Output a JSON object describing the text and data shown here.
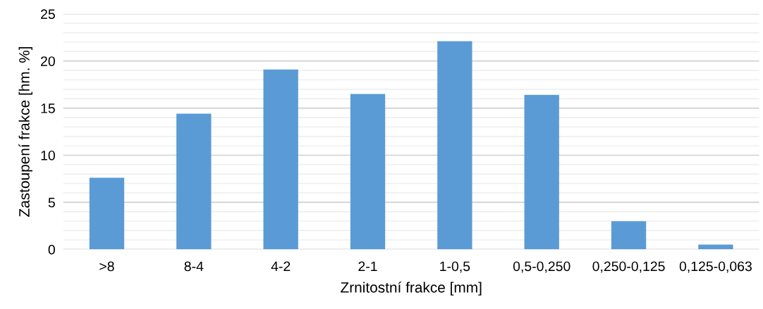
{
  "chart_data": {
    "type": "bar",
    "xlabel": "Zrnitostní frakce [mm]",
    "ylabel": "Zastoupení frakce [hm. %]",
    "categories": [
      ">8",
      "8-4",
      "4-2",
      "2-1",
      "1-0,5",
      "0,5-0,250",
      "0,250-0,125",
      "0,125-0,063"
    ],
    "values": [
      7.6,
      14.4,
      19.1,
      16.5,
      22.1,
      16.4,
      3.0,
      0.5
    ],
    "color": "#5b9bd5",
    "ylim": [
      0,
      25
    ],
    "yticks": [
      0,
      {
        "value": 1,
        "label": null
      },
      {
        "value": 2,
        "label": null
      },
      {
        "value": 3,
        "label": null
      },
      {
        "value": 4,
        "label": null
      },
      5,
      {
        "value": 6,
        "label": null
      },
      {
        "value": 7,
        "label": null
      },
      {
        "value": 8,
        "label": null
      },
      {
        "value": 9,
        "label": null
      },
      10,
      {
        "value": 11,
        "label": null
      },
      {
        "value": 12,
        "label": null
      },
      {
        "value": 13,
        "label": null
      },
      {
        "value": 14,
        "label": null
      },
      15,
      {
        "value": 16,
        "label": null
      },
      {
        "value": 17,
        "label": null
      },
      {
        "value": 18,
        "label": null
      },
      {
        "value": 19,
        "label": null
      },
      20,
      {
        "value": 21,
        "label": null
      },
      {
        "value": 22,
        "label": null
      },
      {
        "value": 23,
        "label": null
      },
      {
        "value": 24,
        "label": null
      },
      25
    ],
    "grid": "y"
  }
}
